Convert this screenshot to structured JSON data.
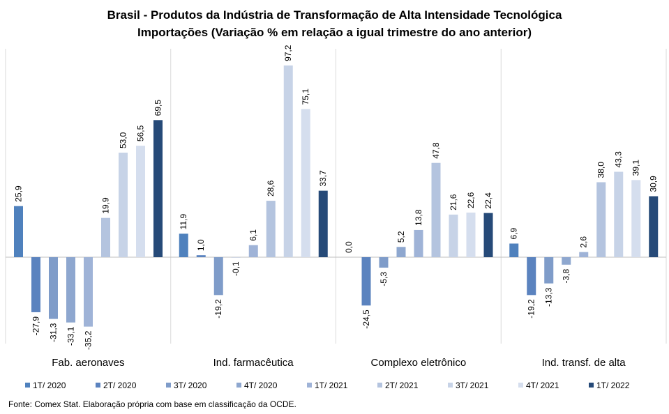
{
  "chart_data": {
    "type": "bar",
    "title": "Brasil - Produtos da Indústria de Transformação  de Alta Intensidade Tecnológica",
    "subtitle": "Importações (Variação % em relação a igual trimestre do ano anterior)",
    "xlabel": "",
    "ylabel": "",
    "ylim": [
      -45,
      110
    ],
    "grid": false,
    "legend_position": "bottom",
    "categories": [
      "Fab. aeronaves",
      "Ind. farmacêutica",
      "Complexo eletrônico",
      "Ind. transf. de alta"
    ],
    "series": [
      {
        "name": "1T/ 2020",
        "color": "#4f81bd",
        "values": [
          25.9,
          11.9,
          0.0,
          6.9
        ],
        "labels": [
          "25,9",
          "11,9",
          "0,0",
          "6,9"
        ]
      },
      {
        "name": "2T/ 2020",
        "color": "#5b83bf",
        "values": [
          -27.9,
          1.0,
          -24.5,
          -19.2
        ],
        "labels": [
          "-27,9",
          "1,0",
          "-24,5",
          "-19,2"
        ]
      },
      {
        "name": "3T/ 2020",
        "color": "#7f9cc9",
        "values": [
          -31.3,
          -19.2,
          -5.3,
          -13.3
        ],
        "labels": [
          "-31,3",
          "-19,2",
          "-5,3",
          "-13,3"
        ]
      },
      {
        "name": "4T/ 2020",
        "color": "#8ea7cf",
        "values": [
          -33.1,
          -0.1,
          5.2,
          -3.8
        ],
        "labels": [
          "-33,1",
          "-0,1",
          "5,2",
          "-3,8"
        ]
      },
      {
        "name": "1T/ 2021",
        "color": "#9fb3d7",
        "values": [
          -35.2,
          6.1,
          13.8,
          2.6
        ],
        "labels": [
          "-35,2",
          "6,1",
          "13,8",
          "2,6"
        ]
      },
      {
        "name": "2T/ 2021",
        "color": "#b4c4df",
        "values": [
          19.9,
          28.6,
          47.8,
          38.0
        ],
        "labels": [
          "19,9",
          "28,6",
          "47,8",
          "38,0"
        ]
      },
      {
        "name": "3T/ 2021",
        "color": "#c7d3e7",
        "values": [
          53.0,
          97.2,
          21.6,
          43.3
        ],
        "labels": [
          "53,0",
          "97,2",
          "21,6",
          "43,3"
        ]
      },
      {
        "name": "4T/ 2021",
        "color": "#d5deee",
        "values": [
          56.5,
          75.1,
          22.6,
          39.1
        ],
        "labels": [
          "56,5",
          "75,1",
          "22,6",
          "39,1"
        ]
      },
      {
        "name": "1T/ 2022",
        "color": "#264a78",
        "values": [
          69.5,
          33.7,
          22.4,
          30.9
        ],
        "labels": [
          "69,5",
          "33,7",
          "22,4",
          "30,9"
        ]
      }
    ]
  },
  "footer": {
    "source": "Fonte: Comex Stat. Elaboração própria com base em classificação da OCDE."
  }
}
